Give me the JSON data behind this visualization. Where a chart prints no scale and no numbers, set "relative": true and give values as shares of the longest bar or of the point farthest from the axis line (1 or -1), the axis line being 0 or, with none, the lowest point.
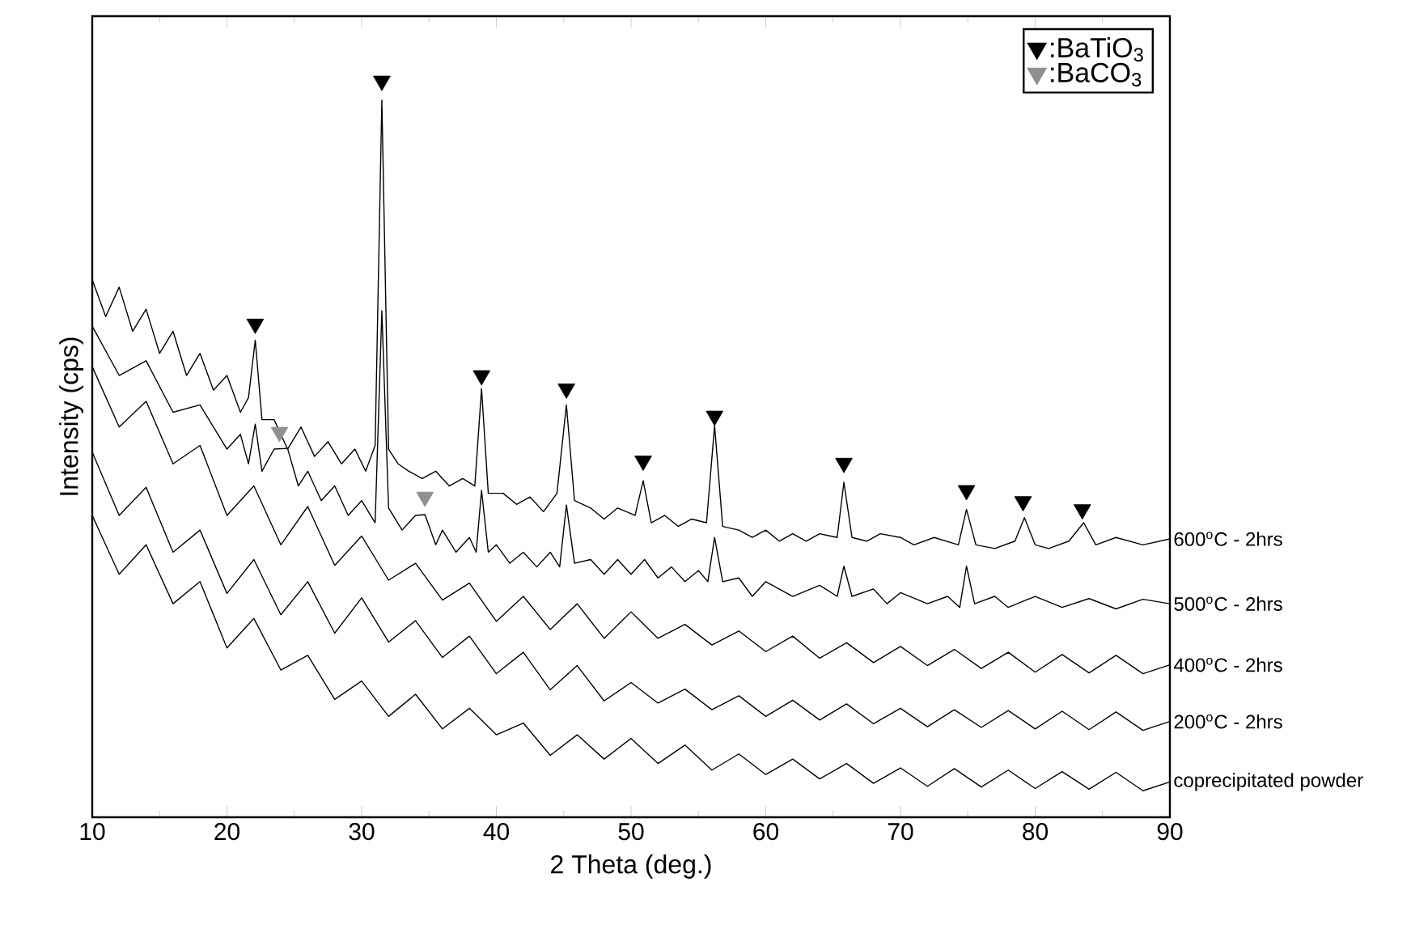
{
  "chart_data": {
    "type": "line",
    "relative": true,
    "xlabel": "2 Theta (deg.)",
    "ylabel": "Intensity (cps)",
    "xlim": [
      10,
      90
    ],
    "xticks": [
      10,
      20,
      30,
      40,
      50,
      60,
      70,
      80,
      90
    ],
    "legend": "top right",
    "line_style": "solid",
    "series": [
      {
        "name": "600$^{o}$C - 2hrs",
        "color": "#000000",
        "x": [
          10,
          11,
          12,
          13,
          14,
          15,
          16,
          17,
          18,
          19,
          20,
          21,
          21.6,
          22.1,
          22.6,
          23.5,
          24.5,
          25.5,
          26.5,
          27.5,
          28.5,
          29.5,
          30.3,
          31,
          31.5,
          32,
          32.7,
          33.5,
          34.5,
          35.5,
          36.5,
          37.5,
          38.4,
          38.9,
          39.4,
          40.5,
          41.5,
          42.5,
          43.5,
          44.5,
          45.2,
          45.8,
          47,
          48,
          49,
          50.3,
          50.9,
          51.5,
          52.5,
          53.5,
          54.5,
          55.6,
          56.2,
          56.8,
          58,
          59,
          60,
          61,
          62,
          63,
          64,
          65.3,
          65.8,
          66.4,
          67.5,
          68.5,
          70,
          71,
          72.5,
          74.3,
          74.9,
          75.6,
          77,
          78.5,
          79.2,
          80,
          81,
          82.5,
          83.6,
          84.5,
          86,
          88,
          90
        ],
        "values": [
          0.73,
          0.68,
          0.72,
          0.66,
          0.69,
          0.63,
          0.66,
          0.6,
          0.63,
          0.58,
          0.6,
          0.55,
          0.57,
          0.648,
          0.54,
          0.54,
          0.5,
          0.53,
          0.49,
          0.51,
          0.48,
          0.5,
          0.47,
          0.505,
          0.974,
          0.5,
          0.48,
          0.47,
          0.46,
          0.47,
          0.45,
          0.46,
          0.45,
          0.582,
          0.44,
          0.44,
          0.425,
          0.435,
          0.415,
          0.44,
          0.56,
          0.43,
          0.42,
          0.405,
          0.42,
          0.41,
          0.457,
          0.4,
          0.41,
          0.395,
          0.405,
          0.4,
          0.532,
          0.395,
          0.39,
          0.38,
          0.39,
          0.375,
          0.385,
          0.375,
          0.385,
          0.38,
          0.455,
          0.38,
          0.375,
          0.385,
          0.38,
          0.37,
          0.38,
          0.37,
          0.418,
          0.37,
          0.365,
          0.375,
          0.407,
          0.37,
          0.365,
          0.375,
          0.4,
          0.37,
          0.38,
          0.37,
          0.378
        ]
      },
      {
        "name": "500$^{o}$C - 2hrs",
        "color": "#000000",
        "x": [
          10,
          12,
          14,
          16,
          18,
          20,
          21,
          21.6,
          22.1,
          22.6,
          23.5,
          24.5,
          25.3,
          26,
          27,
          28,
          29,
          30,
          31,
          31.5,
          32,
          33,
          34,
          34.7,
          35.5,
          36,
          37,
          38,
          38.5,
          38.9,
          39.4,
          40,
          41,
          42,
          43,
          44,
          44.7,
          45.2,
          45.8,
          47,
          48,
          49,
          50,
          51,
          52,
          53,
          54,
          55,
          55.7,
          56.2,
          56.8,
          58,
          59,
          60,
          62,
          64,
          65.3,
          65.8,
          66.4,
          68,
          69,
          70,
          72,
          73.5,
          74.4,
          74.9,
          75.5,
          77,
          78,
          80,
          82,
          84,
          86,
          88,
          90
        ],
        "values": [
          0.667,
          0.6,
          0.62,
          0.55,
          0.56,
          0.5,
          0.52,
          0.48,
          0.534,
          0.47,
          0.5,
          0.501,
          0.45,
          0.47,
          0.43,
          0.45,
          0.41,
          0.43,
          0.4,
          0.688,
          0.42,
          0.39,
          0.41,
          0.411,
          0.37,
          0.39,
          0.36,
          0.38,
          0.36,
          0.444,
          0.36,
          0.37,
          0.345,
          0.36,
          0.34,
          0.36,
          0.34,
          0.424,
          0.345,
          0.35,
          0.33,
          0.35,
          0.33,
          0.35,
          0.325,
          0.34,
          0.32,
          0.335,
          0.32,
          0.38,
          0.32,
          0.325,
          0.3,
          0.32,
          0.3,
          0.315,
          0.3,
          0.341,
          0.3,
          0.31,
          0.29,
          0.305,
          0.29,
          0.3,
          0.285,
          0.341,
          0.29,
          0.3,
          0.285,
          0.3,
          0.285,
          0.297,
          0.283,
          0.296,
          0.29
        ]
      },
      {
        "name": "400$^{o}$C - 2hrs",
        "color": "#000000",
        "x": [
          10,
          12,
          14,
          16,
          18,
          20,
          22,
          24,
          26,
          28,
          30,
          32,
          34,
          36,
          38,
          40,
          42,
          44,
          46,
          48,
          50,
          52,
          54,
          56,
          58,
          60,
          62,
          64,
          66,
          68,
          70,
          72,
          74,
          76,
          78,
          80,
          82,
          84,
          86,
          88,
          90
        ],
        "values": [
          0.612,
          0.53,
          0.565,
          0.48,
          0.505,
          0.41,
          0.45,
          0.37,
          0.422,
          0.342,
          0.382,
          0.322,
          0.345,
          0.295,
          0.318,
          0.266,
          0.3,
          0.255,
          0.29,
          0.243,
          0.279,
          0.243,
          0.262,
          0.234,
          0.253,
          0.225,
          0.246,
          0.216,
          0.237,
          0.21,
          0.232,
          0.206,
          0.228,
          0.202,
          0.224,
          0.197,
          0.221,
          0.196,
          0.22,
          0.195,
          0.207
        ]
      },
      {
        "name": "200$^{o}$C - 2hrs",
        "color": "#000000",
        "x": [
          10,
          12,
          14,
          16,
          18,
          20,
          22,
          24,
          26,
          28,
          30,
          32,
          34,
          36,
          38,
          40,
          42,
          44,
          46,
          48,
          50,
          52,
          54,
          56,
          58,
          60,
          62,
          64,
          66,
          68,
          70,
          72,
          74,
          76,
          78,
          80,
          82,
          84,
          86,
          88,
          90
        ],
        "values": [
          0.496,
          0.41,
          0.448,
          0.36,
          0.39,
          0.304,
          0.35,
          0.275,
          0.32,
          0.25,
          0.298,
          0.238,
          0.267,
          0.217,
          0.246,
          0.195,
          0.224,
          0.173,
          0.206,
          0.158,
          0.183,
          0.155,
          0.174,
          0.146,
          0.165,
          0.137,
          0.159,
          0.132,
          0.154,
          0.127,
          0.148,
          0.123,
          0.146,
          0.122,
          0.145,
          0.12,
          0.144,
          0.119,
          0.143,
          0.118,
          0.13
        ]
      },
      {
        "name": "coprecipitated powder",
        "color": "#000000",
        "x": [
          10,
          12,
          14,
          16,
          18,
          20,
          22,
          24,
          26,
          28,
          30,
          32,
          34,
          36,
          38,
          40,
          42,
          44,
          46,
          48,
          50,
          52,
          54,
          56,
          58,
          60,
          62,
          64,
          66,
          68,
          70,
          72,
          74,
          76,
          78,
          80,
          82,
          84,
          86,
          88,
          90
        ],
        "values": [
          0.41,
          0.33,
          0.37,
          0.29,
          0.32,
          0.23,
          0.27,
          0.2,
          0.22,
          0.16,
          0.185,
          0.137,
          0.167,
          0.12,
          0.148,
          0.112,
          0.128,
          0.084,
          0.112,
          0.079,
          0.107,
          0.073,
          0.098,
          0.064,
          0.086,
          0.058,
          0.079,
          0.052,
          0.073,
          0.046,
          0.067,
          0.042,
          0.066,
          0.041,
          0.064,
          0.039,
          0.062,
          0.038,
          0.061,
          0.036,
          0.048
        ]
      },
      {
        "name": ":BaTiO$_{3}$",
        "type": "scatter",
        "marker": "triangle",
        "color": "#000000",
        "x": [
          22.1,
          31.5,
          38.9,
          45.2,
          50.9,
          56.2,
          65.8,
          74.9,
          79.1,
          83.5
        ],
        "values": [
          0.67,
          1.0,
          0.6,
          0.582,
          0.484,
          0.545,
          0.481,
          0.444,
          0.429,
          0.418
        ]
      },
      {
        "name": ":BaCO$_{3}$",
        "type": "scatter",
        "marker": "triangle",
        "color": "#909090",
        "x": [
          23.9,
          34.7
        ],
        "values": [
          0.523,
          0.435
        ]
      }
    ]
  }
}
